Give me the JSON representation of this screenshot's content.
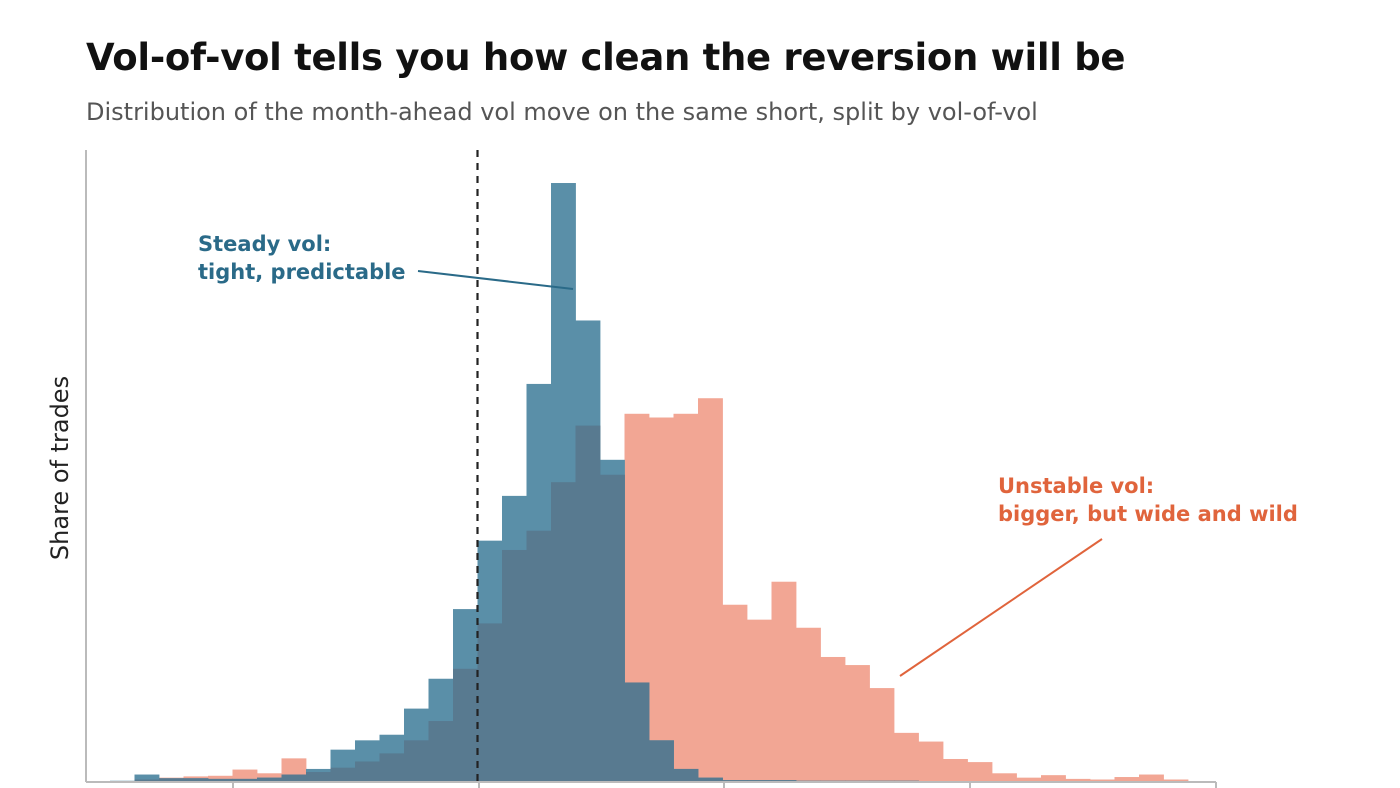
{
  "title": "Vol-of-vol tells you how clean the reversion will be",
  "subtitle": "Distribution of the month-ahead vol move on the same short, split by vol-of-vol",
  "colors": {
    "steady": "#5a8fa8",
    "unstable": "#f2a694",
    "overlap": "#587a90",
    "steady_text": "#2a6a88",
    "unstable_text": "#e0643c",
    "axis": "#bbbbbb",
    "reference_line": "#222222"
  },
  "annotations": {
    "steady": [
      "Steady vol:",
      "tight, predictable"
    ],
    "unstable": [
      "Unstable vol:",
      "bigger, but wide and wild"
    ]
  },
  "chart_data": {
    "type": "histogram",
    "title": "Vol-of-vol tells you how clean the reversion will be",
    "subtitle": "Distribution of the month-ahead vol move on the same short, split by vol-of-vol",
    "ylabel": "Share of trades",
    "xlabel": "",
    "x_tick_labels": [],
    "y_tick_labels": [],
    "grid": false,
    "legend": "none",
    "bins": 44,
    "reference_line_bin": 15,
    "series": [
      {
        "name": "Steady vol",
        "values": [
          0.2,
          1.2,
          0.6,
          0.6,
          0.5,
          0.5,
          0.7,
          1.2,
          2.1,
          5.2,
          6.7,
          7.6,
          11.8,
          16.6,
          27.8,
          38.8,
          46.0,
          64.0,
          96.3,
          74.2,
          51.8,
          16.0,
          6.7,
          2.1,
          0.7,
          0.3,
          0.3,
          0.3,
          0.2,
          0.2,
          0.2,
          0.2,
          0.2,
          0.1,
          0.1,
          0.1,
          0.1,
          0.1,
          0,
          0,
          0,
          0,
          0,
          0
        ]
      },
      {
        "name": "Unstable vol",
        "values": [
          0,
          0.4,
          0.7,
          0.9,
          1.0,
          2.0,
          1.4,
          3.8,
          1.6,
          2.3,
          3.3,
          4.6,
          6.7,
          9.8,
          18.2,
          25.5,
          37.3,
          40.4,
          48.2,
          57.3,
          49.4,
          59.2,
          58.6,
          59.2,
          61.7,
          28.5,
          26.1,
          32.2,
          24.8,
          20.1,
          18.8,
          15.1,
          7.9,
          6.5,
          3.7,
          3.2,
          1.4,
          0.7,
          1.1,
          0.5,
          0.4,
          0.8,
          1.2,
          0.4
        ]
      }
    ]
  }
}
